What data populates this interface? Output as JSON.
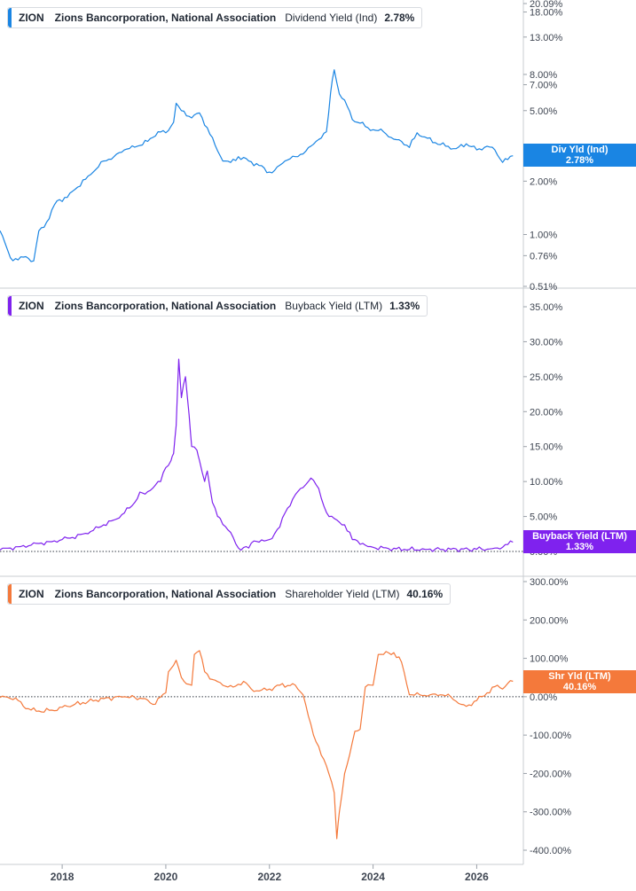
{
  "panels": [
    {
      "ticker": "ZION",
      "company": "Zions Bancorporation, National Association",
      "metric": "Dividend Yield (Ind)",
      "value": "2.78%",
      "color": "#1a85e3",
      "tag_line1": "Div Yld (Ind)",
      "tag_line2": "2.78%"
    },
    {
      "ticker": "ZION",
      "company": "Zions Bancorporation, National Association",
      "metric": "Buyback Yield (LTM)",
      "value": "1.33%",
      "color": "#7f22ee",
      "tag_line1": "Buyback Yield (LTM)",
      "tag_line2": "1.33%"
    },
    {
      "ticker": "ZION",
      "company": "Zions Bancorporation, National Association",
      "metric": "Shareholder Yield (LTM)",
      "value": "40.16%",
      "color": "#f4793b",
      "tag_line1": "Shr Yld (LTM)",
      "tag_line2": "40.16%"
    }
  ],
  "chart_data": [
    {
      "type": "line",
      "title": "ZION Zions Bancorporation, National Association Dividend Yield (Ind) 2.78%",
      "series": [
        {
          "name": "Dividend Yield (Ind)",
          "x": [
            2016.8,
            2017.0,
            2017.15,
            2017.3,
            2017.45,
            2017.55,
            2017.65,
            2017.9,
            2018.1,
            2018.25,
            2018.45,
            2018.6,
            2018.8,
            2019.0,
            2019.2,
            2019.45,
            2019.65,
            2019.85,
            2020.0,
            2020.15,
            2020.2,
            2020.3,
            2020.5,
            2020.65,
            2020.8,
            2020.95,
            2021.1,
            2021.25,
            2021.4,
            2021.6,
            2021.8,
            2022.0,
            2022.1,
            2022.3,
            2022.5,
            2022.7,
            2022.9,
            2023.0,
            2023.1,
            2023.18,
            2023.25,
            2023.35,
            2023.5,
            2023.6,
            2023.75,
            2023.9,
            2024.0,
            2024.2,
            2024.4,
            2024.55,
            2024.7,
            2024.85,
            2025.0,
            2025.2,
            2025.4,
            2025.6,
            2025.8,
            2026.0,
            2026.2,
            2026.35,
            2026.5,
            2026.6,
            2026.7
          ],
          "y": [
            1.05,
            0.74,
            0.72,
            0.75,
            0.71,
            1.05,
            1.1,
            1.55,
            1.62,
            1.8,
            2.05,
            2.25,
            2.6,
            2.75,
            3.0,
            3.15,
            3.35,
            3.8,
            3.75,
            4.3,
            5.5,
            5.0,
            4.55,
            4.85,
            4.0,
            3.2,
            2.6,
            2.55,
            2.75,
            2.6,
            2.45,
            2.25,
            2.3,
            2.6,
            2.75,
            2.95,
            3.35,
            3.5,
            3.8,
            6.3,
            8.5,
            6.2,
            5.3,
            4.45,
            4.25,
            4.0,
            3.9,
            3.8,
            3.45,
            3.35,
            3.1,
            3.75,
            3.55,
            3.3,
            3.15,
            3.05,
            3.25,
            3.0,
            3.15,
            3.0,
            2.55,
            2.65,
            2.78
          ]
        }
      ],
      "yscale": "log",
      "y_tick_labels": [
        "20.09%",
        "18.00%",
        "13.00%",
        "8.00%",
        "7.00%",
        "5.00%",
        "2.00%",
        "1.00%",
        "0.76%",
        "0.51%"
      ]
    },
    {
      "type": "line",
      "title": "ZION Zions Bancorporation, National Association Buyback Yield (LTM) 1.33%",
      "series": [
        {
          "name": "Buyback Yield (LTM)",
          "x": [
            2016.8,
            2017.0,
            2017.2,
            2017.4,
            2017.6,
            2017.8,
            2018.0,
            2018.2,
            2018.4,
            2018.6,
            2018.8,
            2019.0,
            2019.2,
            2019.4,
            2019.5,
            2019.6,
            2019.8,
            2019.9,
            2020.0,
            2020.1,
            2020.15,
            2020.2,
            2020.25,
            2020.3,
            2020.38,
            2020.45,
            2020.5,
            2020.6,
            2020.65,
            2020.75,
            2020.8,
            2020.9,
            2021.0,
            2021.05,
            2021.3,
            2021.4,
            2021.6,
            2021.7,
            2021.9,
            2022.0,
            2022.2,
            2022.3,
            2022.45,
            2022.6,
            2022.75,
            2022.8,
            2022.95,
            2023.05,
            2023.15,
            2023.3,
            2023.45,
            2023.6,
            2023.7,
            2023.9,
            2024.0,
            2024.3,
            2024.6,
            2025.0,
            2025.5,
            2026.0,
            2026.3,
            2026.5,
            2026.6,
            2026.7
          ],
          "y": [
            0.2,
            0.5,
            0.7,
            0.9,
            1.2,
            1.4,
            1.7,
            2.0,
            2.5,
            3.0,
            3.8,
            4.5,
            5.5,
            7.0,
            8.5,
            8.2,
            9.5,
            10.0,
            12.0,
            13.0,
            14.0,
            18.0,
            27.5,
            22.0,
            25.0,
            19.5,
            15.0,
            14.5,
            13.0,
            10.0,
            11.5,
            7.0,
            5.0,
            4.7,
            2.0,
            0.5,
            0.5,
            1.5,
            1.5,
            1.7,
            3.5,
            5.5,
            7.5,
            9.0,
            10.0,
            10.5,
            9.0,
            6.5,
            5.0,
            4.5,
            3.8,
            1.7,
            1.5,
            0.7,
            0.6,
            0.4,
            0.3,
            0.3,
            0.3,
            0.3,
            0.4,
            0.6,
            1.0,
            1.33
          ]
        }
      ],
      "ylim": [
        0,
        35
      ],
      "y_tick_labels": [
        "35.00%",
        "30.00%",
        "25.00%",
        "20.00%",
        "15.00%",
        "10.00%",
        "5.00%",
        "0.00%"
      ]
    },
    {
      "type": "line",
      "title": "ZION Zions Bancorporation, National Association Shareholder Yield (LTM) 40.16%",
      "series": [
        {
          "name": "Shareholder Yield (LTM)",
          "x": [
            2016.8,
            2017.1,
            2017.25,
            2017.5,
            2017.8,
            2018.1,
            2018.4,
            2018.8,
            2019.2,
            2019.6,
            2019.75,
            2020.0,
            2020.05,
            2020.2,
            2020.3,
            2020.35,
            2020.5,
            2020.55,
            2020.65,
            2020.75,
            2020.9,
            2021.1,
            2021.3,
            2021.5,
            2021.65,
            2021.8,
            2022.0,
            2022.2,
            2022.5,
            2022.65,
            2022.75,
            2022.85,
            2022.95,
            2023.1,
            2023.25,
            2023.3,
            2023.35,
            2023.45,
            2023.55,
            2023.65,
            2023.75,
            2023.85,
            2024.0,
            2024.1,
            2024.4,
            2024.55,
            2024.7,
            2024.9,
            2025.1,
            2025.3,
            2025.5,
            2025.7,
            2025.8,
            2026.0,
            2026.2,
            2026.4,
            2026.5,
            2026.6,
            2026.7
          ],
          "y": [
            -2,
            -3,
            -25,
            -38,
            -35,
            -25,
            -15,
            -5,
            0,
            -5,
            -20,
            10,
            65,
            95,
            50,
            40,
            30,
            110,
            120,
            65,
            45,
            30,
            25,
            40,
            20,
            15,
            20,
            30,
            30,
            5,
            -50,
            -100,
            -130,
            -180,
            -250,
            -370,
            -300,
            -200,
            -150,
            -90,
            -85,
            25,
            30,
            110,
            115,
            90,
            5,
            5,
            5,
            5,
            0,
            -20,
            -25,
            -10,
            10,
            30,
            20,
            35,
            40.16
          ]
        }
      ],
      "ylim": [
        -400,
        300
      ],
      "y_tick_labels": [
        "300.00%",
        "200.00%",
        "100.00%",
        "0.00%",
        "-100.00%",
        "-200.00%",
        "-300.00%",
        "-400.00%"
      ]
    }
  ],
  "x_axis": {
    "tick_labels": [
      "2018",
      "2020",
      "2022",
      "2024",
      "2026"
    ],
    "range": [
      2016.8,
      2026.9
    ]
  }
}
